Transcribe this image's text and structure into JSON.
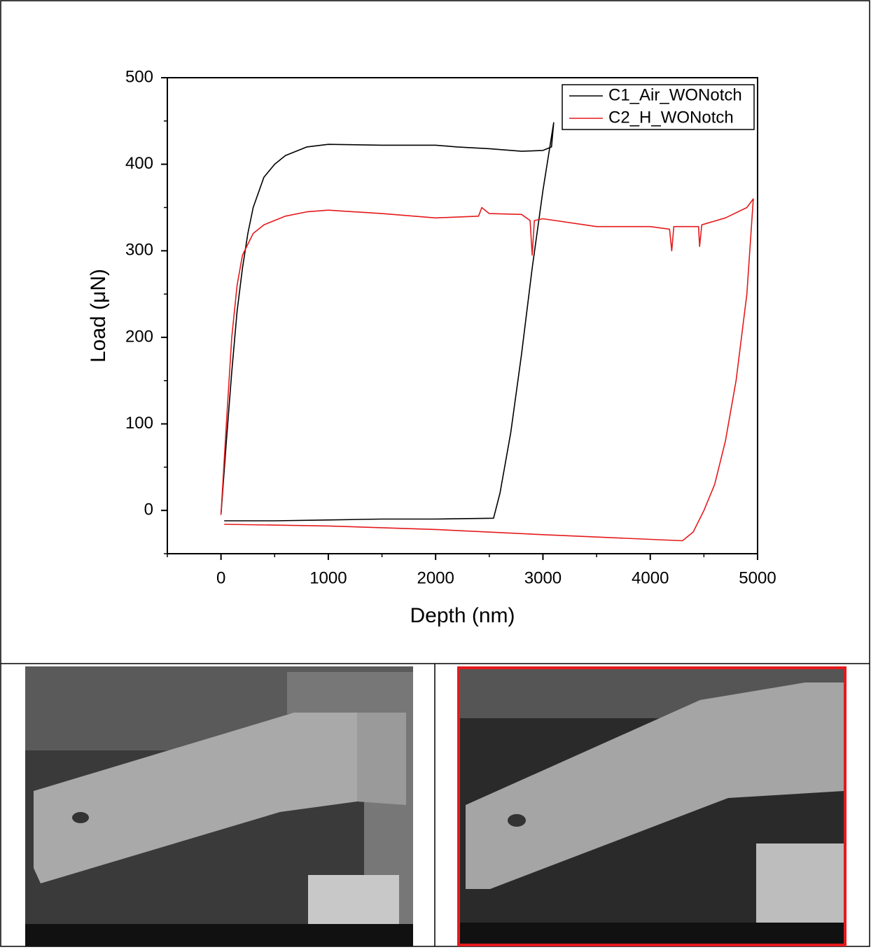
{
  "chart_data": {
    "type": "line",
    "x_label": "Depth (nm)",
    "y_label": "Load (μN)",
    "xlim": [
      -500,
      5000
    ],
    "ylim": [
      -50,
      500
    ],
    "xticks": [
      0,
      1000,
      2000,
      3000,
      4000,
      5000
    ],
    "yticks": [
      0,
      100,
      200,
      300,
      400,
      500
    ],
    "legend": "upper right",
    "series": [
      {
        "name": "C1_Air_WONotch",
        "color": "#000000",
        "x": [
          0,
          50,
          100,
          150,
          200,
          250,
          300,
          400,
          500,
          600,
          800,
          1000,
          1500,
          2000,
          2200,
          2500,
          2800,
          3000,
          3080,
          3100,
          3000,
          2900,
          2800,
          2700,
          2600,
          2540,
          2000,
          1500,
          1000,
          500,
          30
        ],
        "values": [
          -5,
          80,
          160,
          230,
          280,
          320,
          350,
          385,
          400,
          410,
          420,
          423,
          422,
          422,
          420,
          418,
          415,
          416,
          420,
          448,
          370,
          280,
          180,
          90,
          20,
          -9,
          -10,
          -10,
          -11,
          -12,
          -12
        ]
      },
      {
        "name": "C2_H_WONotch",
        "color": "#e41a1c",
        "x": [
          0,
          50,
          100,
          150,
          200,
          300,
          400,
          600,
          800,
          1000,
          1500,
          2000,
          2400,
          2430,
          2500,
          2800,
          2880,
          2900,
          2920,
          3000,
          3500,
          4000,
          4180,
          4200,
          4220,
          4450,
          4460,
          4480,
          4700,
          4900,
          4960,
          4900,
          4800,
          4700,
          4600,
          4500,
          4400,
          4300,
          3000,
          2000,
          1000,
          30
        ],
        "values": [
          -5,
          100,
          200,
          260,
          295,
          320,
          330,
          340,
          345,
          347,
          343,
          338,
          340,
          350,
          343,
          342,
          335,
          295,
          335,
          337,
          328,
          328,
          325,
          300,
          328,
          328,
          305,
          330,
          338,
          350,
          360,
          250,
          150,
          80,
          30,
          0,
          -25,
          -35,
          -28,
          -22,
          -18,
          -16
        ]
      }
    ]
  }
}
